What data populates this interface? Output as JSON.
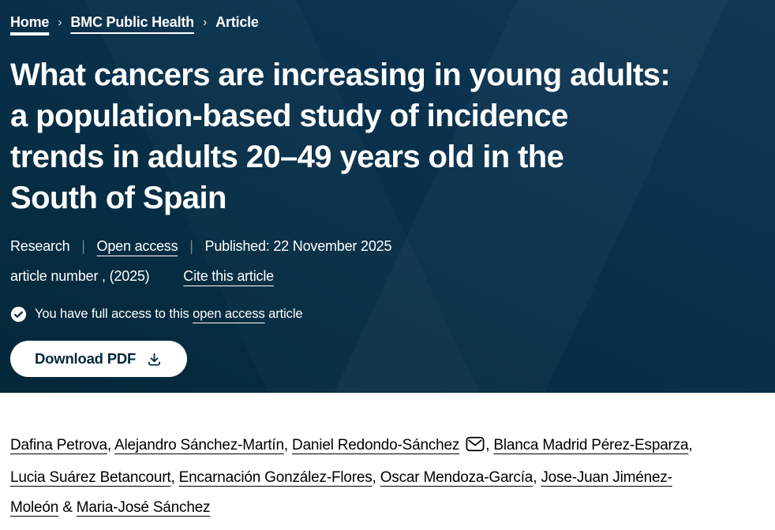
{
  "breadcrumb": {
    "separator": "›",
    "items": [
      {
        "label": "Home"
      },
      {
        "label": "BMC Public Health"
      },
      {
        "label": "Article"
      }
    ]
  },
  "hero": {
    "title_lines": [
      "What cancers are increasing in young adults:",
      "a population-based study of incidence",
      "trends in adults 20–49 years old in the",
      "South of Spain"
    ],
    "meta": {
      "type": "Research",
      "separator": "|",
      "access": "Open access",
      "published": "Published: 22 November 2025"
    },
    "article_line": {
      "text": "article number , (2025)",
      "cite_link": "Cite this article"
    },
    "access_note": {
      "prefix": "You have full access to this",
      "link": "open access",
      "suffix": "article"
    },
    "download_button": "Download PDF"
  },
  "authors": {
    "separator": ", ",
    "last_separator": " & ",
    "list": [
      {
        "name": "Dafina Petrova"
      },
      {
        "name": "Alejandro Sánchez-Martín"
      },
      {
        "name": "Daniel Redondo-Sánchez",
        "email": true
      },
      {
        "name": "Blanca Madrid Pérez-Esparza"
      },
      {
        "name": "Lucia Suárez Betancourt"
      },
      {
        "name": "Encarnación González-Flores"
      },
      {
        "name": "Oscar Mendoza-García"
      },
      {
        "name": "Jose-Juan Jiménez-Moleón"
      },
      {
        "name": "Maria-José Sánchez"
      }
    ]
  },
  "colors": {
    "hero_background": "#072e45",
    "text_on_dark": "#ffffff",
    "button_background": "#ffffff",
    "button_text": "#02283c",
    "author_text": "#000000"
  }
}
